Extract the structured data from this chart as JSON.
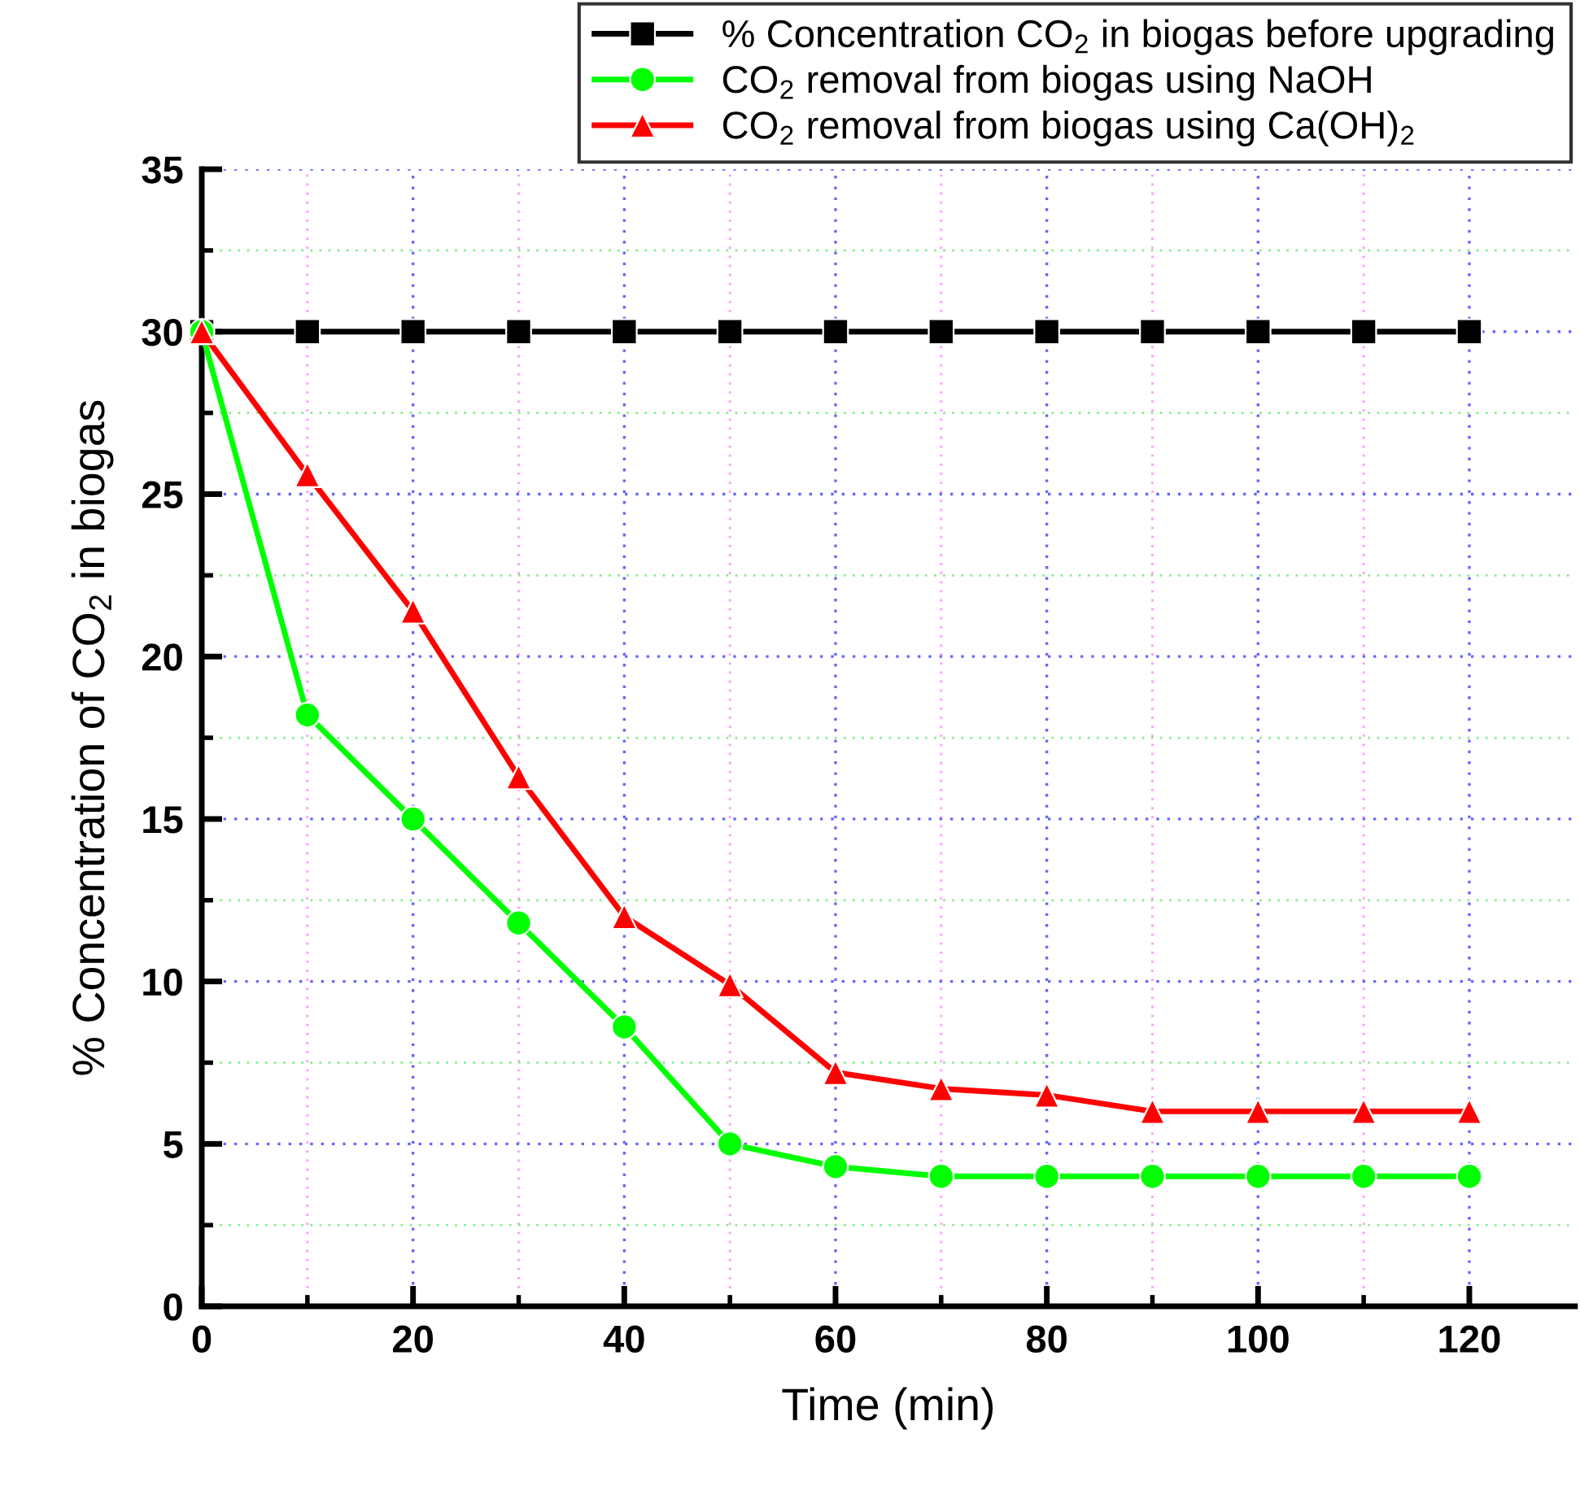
{
  "chart_data": {
    "type": "line",
    "xlabel": "Time (min)",
    "ylabel": "% Concentration of CO$_{2}$ in biogas",
    "x": [
      0,
      10,
      20,
      30,
      40,
      50,
      60,
      70,
      80,
      90,
      100,
      110,
      120
    ],
    "series": [
      {
        "name": "% Concentration CO$_{2}$ in biogas before upgrading",
        "color": "#000000",
        "marker": "square",
        "values": [
          30,
          30,
          30,
          30,
          30,
          30,
          30,
          30,
          30,
          30,
          30,
          30,
          30
        ]
      },
      {
        "name": "CO$_{2}$ removal from biogas using NaOH",
        "color": "#00ff00",
        "marker": "circle",
        "values": [
          30,
          18.2,
          15.0,
          11.8,
          8.6,
          5.0,
          4.3,
          4.0,
          4.0,
          4.0,
          4.0,
          4.0,
          4.0
        ]
      },
      {
        "name": "CO$_{2}$ removal from biogas using Ca(OH)$_{2}$",
        "color": "#ff0000",
        "marker": "triangle",
        "values": [
          30,
          25.6,
          21.4,
          16.3,
          12.0,
          9.9,
          7.2,
          6.7,
          6.5,
          6.0,
          6.0,
          6.0,
          6.0
        ]
      }
    ],
    "xlim": [
      0,
      130
    ],
    "xticks": [
      0,
      {
        "value": 10,
        "label": null
      },
      20,
      {
        "value": 30,
        "label": null
      },
      40,
      {
        "value": 50,
        "label": null
      },
      60,
      {
        "value": 70,
        "label": null
      },
      80,
      {
        "value": 90,
        "label": null
      },
      100,
      {
        "value": 110,
        "label": null
      },
      120
    ],
    "ylim": [
      0,
      35
    ],
    "yticks": [
      0,
      {
        "value": 2.5,
        "label": null
      },
      5,
      {
        "value": 7.5,
        "label": null
      },
      10,
      {
        "value": 12.5,
        "label": null
      },
      15,
      {
        "value": 17.5,
        "label": null
      },
      20,
      {
        "value": 22.5,
        "label": null
      },
      25,
      {
        "value": 27.5,
        "label": null
      },
      30,
      {
        "value": 32.5,
        "label": null
      },
      35
    ],
    "grid": true,
    "legend": "top right",
    "line_style": "solid"
  }
}
